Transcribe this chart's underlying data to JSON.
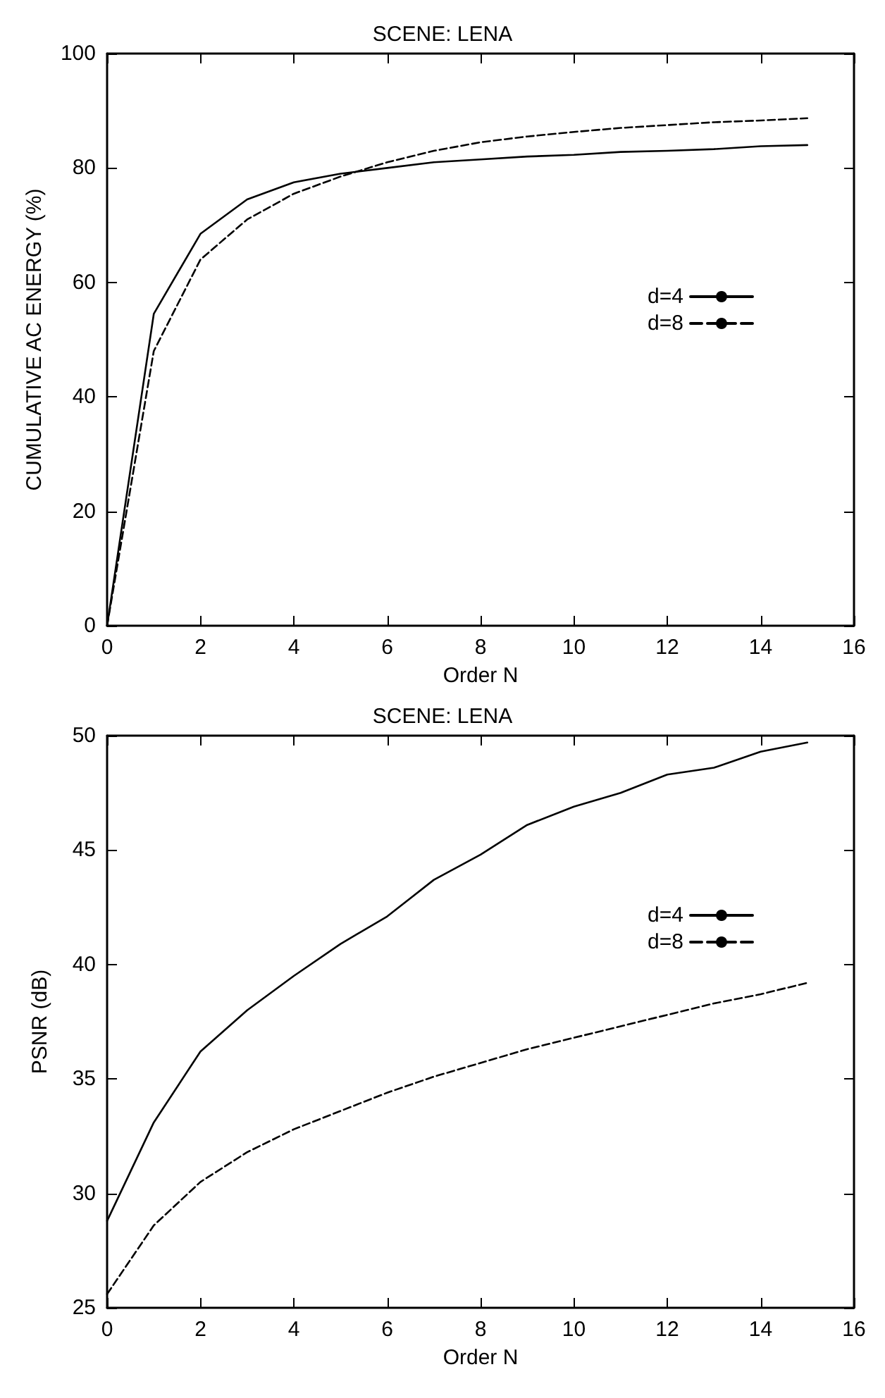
{
  "chart_data": [
    {
      "type": "line",
      "title": "SCENE: LENA",
      "xlabel": "Order N",
      "ylabel": "CUMULATIVE AC ENERGY (%)",
      "x": [
        0,
        1,
        2,
        3,
        4,
        5,
        6,
        7,
        8,
        9,
        10,
        11,
        12,
        13,
        14,
        15
      ],
      "xlim": [
        0,
        16
      ],
      "xticks": [
        0,
        2,
        4,
        6,
        8,
        10,
        12,
        14,
        16
      ],
      "ylim": [
        0,
        100
      ],
      "yticks": [
        0,
        20,
        40,
        60,
        80,
        100
      ],
      "grid": false,
      "legend": "right",
      "marker": "none",
      "series": [
        {
          "name": "d=4",
          "color": "#000000",
          "line_style": "solid",
          "values": [
            0,
            54.5,
            68.5,
            74.5,
            77.5,
            79,
            80,
            81,
            81.5,
            82,
            82.3,
            82.8,
            83,
            83.3,
            83.8,
            84
          ]
        },
        {
          "name": "d=8",
          "color": "#000000",
          "line_style": "dashed",
          "values": [
            0,
            48,
            64,
            71,
            75.5,
            78.5,
            81,
            83,
            84.5,
            85.5,
            86.3,
            87,
            87.5,
            88,
            88.3,
            88.7
          ]
        }
      ]
    },
    {
      "type": "line",
      "title": "SCENE: LENA",
      "xlabel": "Order N",
      "ylabel": "PSNR (dB)",
      "x": [
        0,
        1,
        2,
        3,
        4,
        5,
        6,
        7,
        8,
        9,
        10,
        11,
        12,
        13,
        14,
        15
      ],
      "xlim": [
        0,
        16
      ],
      "xticks": [
        0,
        2,
        4,
        6,
        8,
        10,
        12,
        14,
        16
      ],
      "ylim": [
        25,
        50
      ],
      "yticks": [
        25,
        30,
        35,
        40,
        45,
        50
      ],
      "grid": false,
      "legend": "top right",
      "marker": "none",
      "series": [
        {
          "name": "d=4",
          "color": "#000000",
          "line_style": "solid",
          "values": [
            28.8,
            33.1,
            36.2,
            38,
            39.5,
            40.9,
            42.1,
            43.7,
            44.8,
            46.1,
            46.9,
            47.5,
            48.3,
            48.6,
            49.3,
            49.7
          ]
        },
        {
          "name": "d=8",
          "color": "#000000",
          "line_style": "dashed",
          "values": [
            25.6,
            28.6,
            30.5,
            31.8,
            32.8,
            33.6,
            34.4,
            35.1,
            35.7,
            36.3,
            36.8,
            37.3,
            37.8,
            38.3,
            38.7,
            39.2
          ]
        }
      ]
    }
  ]
}
